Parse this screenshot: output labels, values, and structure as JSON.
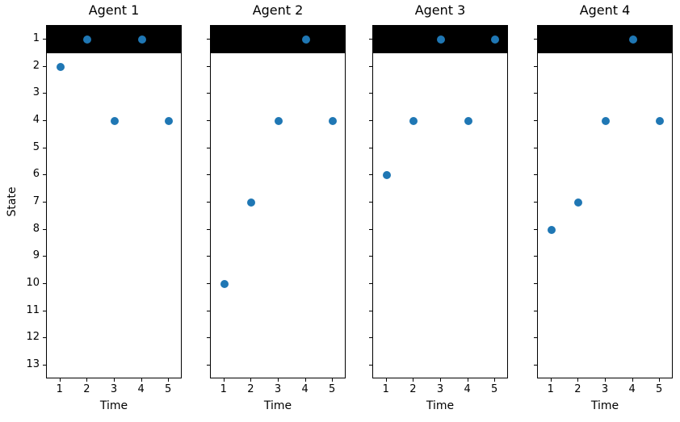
{
  "figure": {
    "background": "#ffffff",
    "ylabel": "State",
    "text_color": "#000000",
    "spine_color": "#000000",
    "marker_color": "#1f77b4",
    "band_color": "#000000"
  },
  "chart_data": [
    {
      "type": "scatter",
      "title": "Agent 1",
      "xlabel": "Time",
      "x": [
        1,
        2,
        3,
        4,
        5
      ],
      "y": [
        2,
        1,
        4,
        1,
        4
      ],
      "xlim": [
        0.5,
        5.5
      ],
      "ylim": [
        13.5,
        0.5
      ],
      "xticks": [
        1,
        2,
        3,
        4,
        5
      ],
      "yticks": [
        1,
        2,
        3,
        4,
        5,
        6,
        7,
        8,
        9,
        10,
        11,
        12,
        13
      ],
      "show_ytick_labels": true,
      "grid": false,
      "hspan": {
        "from": 0.5,
        "to": 1.5,
        "color": "#000000"
      }
    },
    {
      "type": "scatter",
      "title": "Agent 2",
      "xlabel": "Time",
      "x": [
        1,
        2,
        3,
        4,
        5
      ],
      "y": [
        10,
        7,
        4,
        1,
        4
      ],
      "xlim": [
        0.5,
        5.5
      ],
      "ylim": [
        13.5,
        0.5
      ],
      "xticks": [
        1,
        2,
        3,
        4,
        5
      ],
      "yticks": [
        1,
        2,
        3,
        4,
        5,
        6,
        7,
        8,
        9,
        10,
        11,
        12,
        13
      ],
      "show_ytick_labels": false,
      "grid": false,
      "hspan": {
        "from": 0.5,
        "to": 1.5,
        "color": "#000000"
      }
    },
    {
      "type": "scatter",
      "title": "Agent 3",
      "xlabel": "Time",
      "x": [
        1,
        2,
        3,
        4,
        5
      ],
      "y": [
        6,
        4,
        1,
        4,
        1
      ],
      "xlim": [
        0.5,
        5.5
      ],
      "ylim": [
        13.5,
        0.5
      ],
      "xticks": [
        1,
        2,
        3,
        4,
        5
      ],
      "yticks": [
        1,
        2,
        3,
        4,
        5,
        6,
        7,
        8,
        9,
        10,
        11,
        12,
        13
      ],
      "show_ytick_labels": false,
      "grid": false,
      "hspan": {
        "from": 0.5,
        "to": 1.5,
        "color": "#000000"
      }
    },
    {
      "type": "scatter",
      "title": "Agent 4",
      "xlabel": "Time",
      "x": [
        1,
        2,
        3,
        4,
        5
      ],
      "y": [
        8,
        7,
        4,
        1,
        4
      ],
      "xlim": [
        0.5,
        5.5
      ],
      "ylim": [
        13.5,
        0.5
      ],
      "xticks": [
        1,
        2,
        3,
        4,
        5
      ],
      "yticks": [
        1,
        2,
        3,
        4,
        5,
        6,
        7,
        8,
        9,
        10,
        11,
        12,
        13
      ],
      "show_ytick_labels": false,
      "grid": false,
      "hspan": {
        "from": 0.5,
        "to": 1.5,
        "color": "#000000"
      }
    }
  ]
}
